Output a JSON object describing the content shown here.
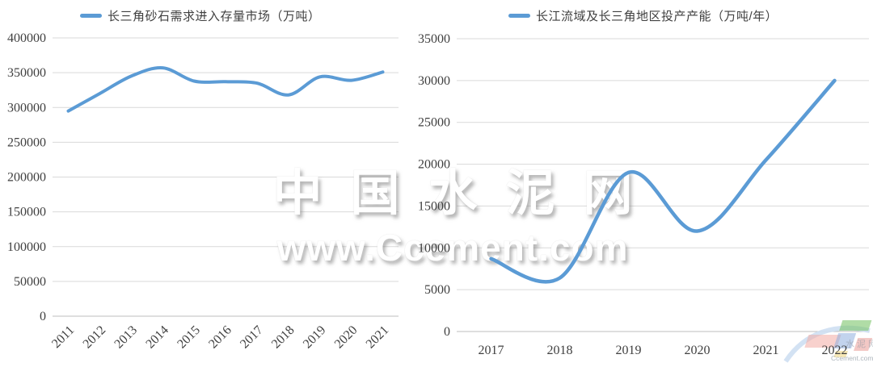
{
  "watermark": {
    "brand": "中国水泥网",
    "url": "www.Ccement.com"
  },
  "logo": {
    "site": "Ccement.com",
    "faint_text": "水泥网"
  },
  "chart_data": [
    {
      "type": "line",
      "title": "长三角砂石需求进入存量市场（万吨）",
      "categories": [
        "2011",
        "2012",
        "2013",
        "2014",
        "2015",
        "2016",
        "2017",
        "2018",
        "2019",
        "2020",
        "2021"
      ],
      "values": [
        295000,
        320000,
        345000,
        357000,
        338000,
        337000,
        335000,
        318000,
        344000,
        339000,
        351000
      ],
      "xlabel": "",
      "ylabel": "",
      "ylim": [
        0,
        400000
      ],
      "ytick_step": 50000,
      "grid": true,
      "legend_position": "top",
      "x_label_rotation": -45,
      "line_color": "#5B9BD5",
      "smooth": true
    },
    {
      "type": "line",
      "title": "长江流域及长三角地区投产产能（万吨/年）",
      "categories": [
        "2017",
        "2018",
        "2019",
        "2020",
        "2021",
        "2022"
      ],
      "values": [
        8700,
        6400,
        19000,
        12000,
        20500,
        30000
      ],
      "xlabel": "",
      "ylabel": "",
      "ylim": [
        0,
        35000
      ],
      "ytick_step": 5000,
      "grid": true,
      "legend_position": "top",
      "x_label_rotation": 0,
      "line_color": "#5B9BD5",
      "smooth": true
    }
  ]
}
